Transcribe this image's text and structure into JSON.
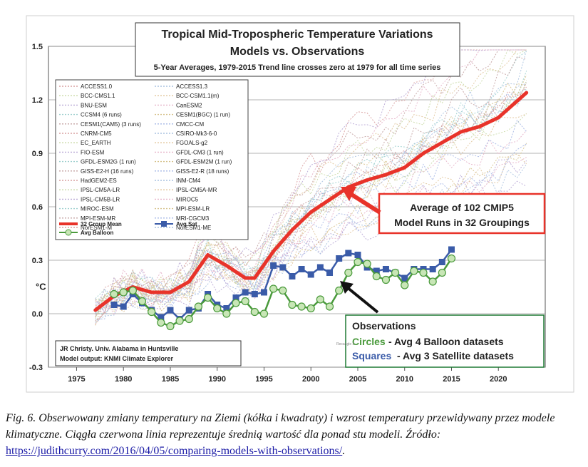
{
  "chart_data": {
    "type": "line",
    "title": "Tropical Mid-Tropospheric Temperature Variations",
    "subtitle": "Models vs. Observations",
    "subtitle2": "5-Year Averages, 1979-2015 Trend line crosses zero at 1979 for all time series",
    "ylabel": "°C",
    "xlim": [
      1972,
      2025
    ],
    "ylim": [
      -0.3,
      1.5
    ],
    "xticks": [
      1975,
      1980,
      1985,
      1990,
      1995,
      2000,
      2005,
      2010,
      2015,
      2020
    ],
    "yticks": [
      -0.3,
      0.0,
      0.3,
      0.6,
      0.9,
      1.2,
      1.5
    ],
    "ytick_labels": [
      "-0.3",
      "0.0",
      "0.3",
      "0.6",
      "0.9",
      "1.2",
      "1.5"
    ],
    "grid": true,
    "model_legend": [
      "ACCESS1.0",
      "ACCESS1.3",
      "BCC-CMS1.1",
      "BCC-CSM1.1(m)",
      "BNU-ESM",
      "CanESM2",
      "CCSM4 (6 runs)",
      "CESM1(BGC) (1 run)",
      "CESM1(CAM5) (3 runs)",
      "CMCC-CM",
      "CNRM-CM5",
      "CSIRO-Mk3-6-0",
      "EC_EARTH",
      "FGOALS-g2",
      "FIO-ESM",
      "GFDL-CM3 (1 run)",
      "GFDL-ESM2G (1 run)",
      "GFDL-ESM2M (1 run)",
      "GISS-E2-H (16 runs)",
      "GISS-E2-R (18 runs)",
      "HadGEM2-ES",
      "INM-CM4",
      "IPSL-CM5A-LR",
      "IPSL-CM5A-MR",
      "IPSL-CM5B-LR",
      "MIROC5",
      "MIROC-ESM",
      "MPI-ESM-LR",
      "MPI-ESM-MR",
      "MRI-CGCM3",
      "NorESM1-M",
      "NorESM1-ME"
    ],
    "series": [
      {
        "name": "32 Group Mean",
        "color": "#e8332a",
        "x": [
          1977,
          1979,
          1981,
          1983,
          1985,
          1987,
          1989,
          1991,
          1993,
          1994,
          1996,
          1998,
          2000,
          2002,
          2004,
          2006,
          2008,
          2010,
          2012,
          2014,
          2016,
          2018,
          2020,
          2023
        ],
        "y": [
          0.02,
          0.1,
          0.15,
          0.12,
          0.12,
          0.18,
          0.33,
          0.27,
          0.2,
          0.2,
          0.35,
          0.47,
          0.57,
          0.64,
          0.71,
          0.75,
          0.78,
          0.82,
          0.9,
          0.96,
          1.02,
          1.05,
          1.1,
          1.24
        ]
      },
      {
        "name": "Avg Sat",
        "color": "#3a5ba8",
        "x": [
          1979,
          1980,
          1981,
          1982,
          1983,
          1984,
          1985,
          1986,
          1987,
          1988,
          1989,
          1990,
          1991,
          1992,
          1993,
          1994,
          1995,
          1996,
          1997,
          1998,
          1999,
          2000,
          2001,
          2002,
          2003,
          2004,
          2005,
          2006,
          2007,
          2008,
          2009,
          2010,
          2011,
          2012,
          2013,
          2014,
          2015
        ],
        "y": [
          0.05,
          0.04,
          0.11,
          0.06,
          0.02,
          -0.02,
          0.02,
          -0.03,
          0.02,
          0.03,
          0.11,
          0.05,
          0.03,
          0.09,
          0.12,
          0.11,
          0.12,
          0.27,
          0.26,
          0.21,
          0.25,
          0.22,
          0.26,
          0.23,
          0.31,
          0.34,
          0.33,
          0.26,
          0.24,
          0.25,
          0.23,
          0.2,
          0.25,
          0.25,
          0.25,
          0.29,
          0.36
        ]
      },
      {
        "name": "Avg Balloon",
        "color": "#4a9a3c",
        "x": [
          1979,
          1980,
          1981,
          1982,
          1983,
          1984,
          1985,
          1986,
          1987,
          1988,
          1989,
          1990,
          1991,
          1992,
          1993,
          1994,
          1995,
          1996,
          1997,
          1998,
          1999,
          2000,
          2001,
          2002,
          2003,
          2004,
          2005,
          2006,
          2007,
          2008,
          2009,
          2010,
          2011,
          2012,
          2013,
          2014,
          2015
        ],
        "y": [
          0.11,
          0.12,
          0.13,
          0.07,
          0.01,
          -0.05,
          -0.07,
          -0.04,
          -0.03,
          0.04,
          0.09,
          0.03,
          0.0,
          0.06,
          0.07,
          0.01,
          0.0,
          0.14,
          0.13,
          0.05,
          0.04,
          0.03,
          0.08,
          0.04,
          0.13,
          0.23,
          0.29,
          0.28,
          0.21,
          0.19,
          0.23,
          0.16,
          0.24,
          0.23,
          0.18,
          0.23,
          0.31
        ]
      }
    ],
    "legend_bottom": {
      "mean": "32 Group Mean",
      "sat": "Avg Sat",
      "balloon": "Avg Balloon"
    },
    "annotations": {
      "average_box": [
        "Average of 102 CMIP5",
        "Model Runs in 32 Groupings"
      ],
      "observations_heading": "Observations",
      "circles_word": "Circles",
      "circles_text": " - Avg 4 Balloon datasets",
      "squares_word": "Squares",
      "squares_text": "- Avg 3 Satellite datasets",
      "credit_line1": "JR Christy. Univ. Alabama in Huntsville",
      "credit_line2": "Model output: KNMI Climate Explorer",
      "tiny_tag": "Recangle 2"
    },
    "colors": {
      "mean": "#e8332a",
      "sat": "#3a5ba8",
      "balloon": "#4a9a3c",
      "balloon_fill": "#c8e6b6",
      "annotation_border": "#e8332a",
      "obs_border": "#1f7a34"
    }
  },
  "caption": {
    "text": "Fig. 6. Obserwowany zmiany temperatury na Ziemi (kółka i kwadraty) i wzrost temperatury przewidywany przez modele klimatyczne. Ciągła czerwona linia reprezentuje średnią wartość dla ponad stu modeli. Źródło: ",
    "link": "https://judithcurry.com/2016/04/05/comparing-models-with-observations/",
    "tail": "."
  }
}
